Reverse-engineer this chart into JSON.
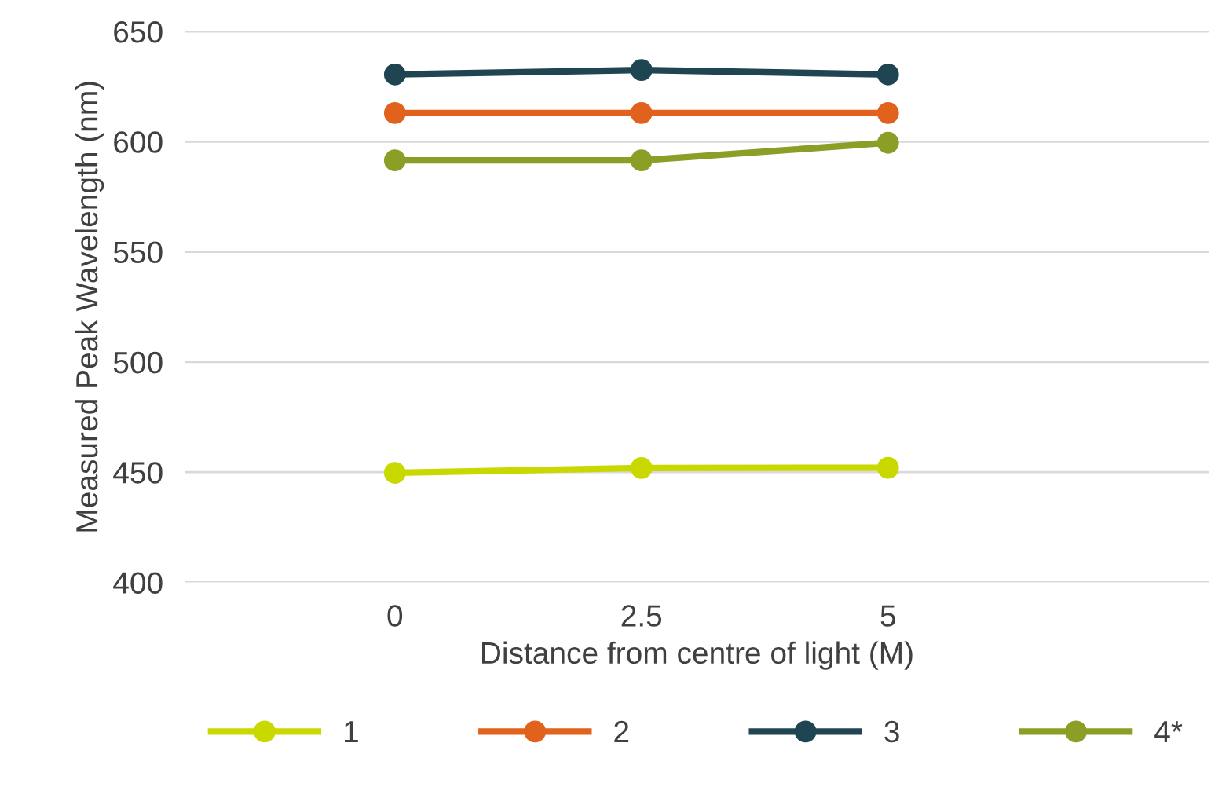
{
  "chart_data": {
    "type": "line",
    "xlabel": "Distance from centre of light (M)",
    "ylabel": "Measured Peak Wavelength (nm)",
    "categories": [
      "0",
      "2.5",
      "5"
    ],
    "series": [
      {
        "name": "1",
        "color": "#c9d900",
        "values": [
          449.7,
          451.9,
          452
        ]
      },
      {
        "name": "2",
        "color": "#e0621c",
        "values": [
          613,
          613,
          613
        ]
      },
      {
        "name": "3",
        "color": "#1f4553",
        "values": [
          630.5,
          632.5,
          630.5
        ]
      },
      {
        "name": "4*",
        "color": "#8c9e26",
        "values": [
          591.5,
          591.5,
          599.5
        ]
      }
    ],
    "ylim": [
      400,
      650
    ],
    "yticks": [
      400,
      450,
      500,
      550,
      600,
      650
    ],
    "grid": "y",
    "legend": "bottom",
    "marker": "circle",
    "line_style": "solid"
  }
}
